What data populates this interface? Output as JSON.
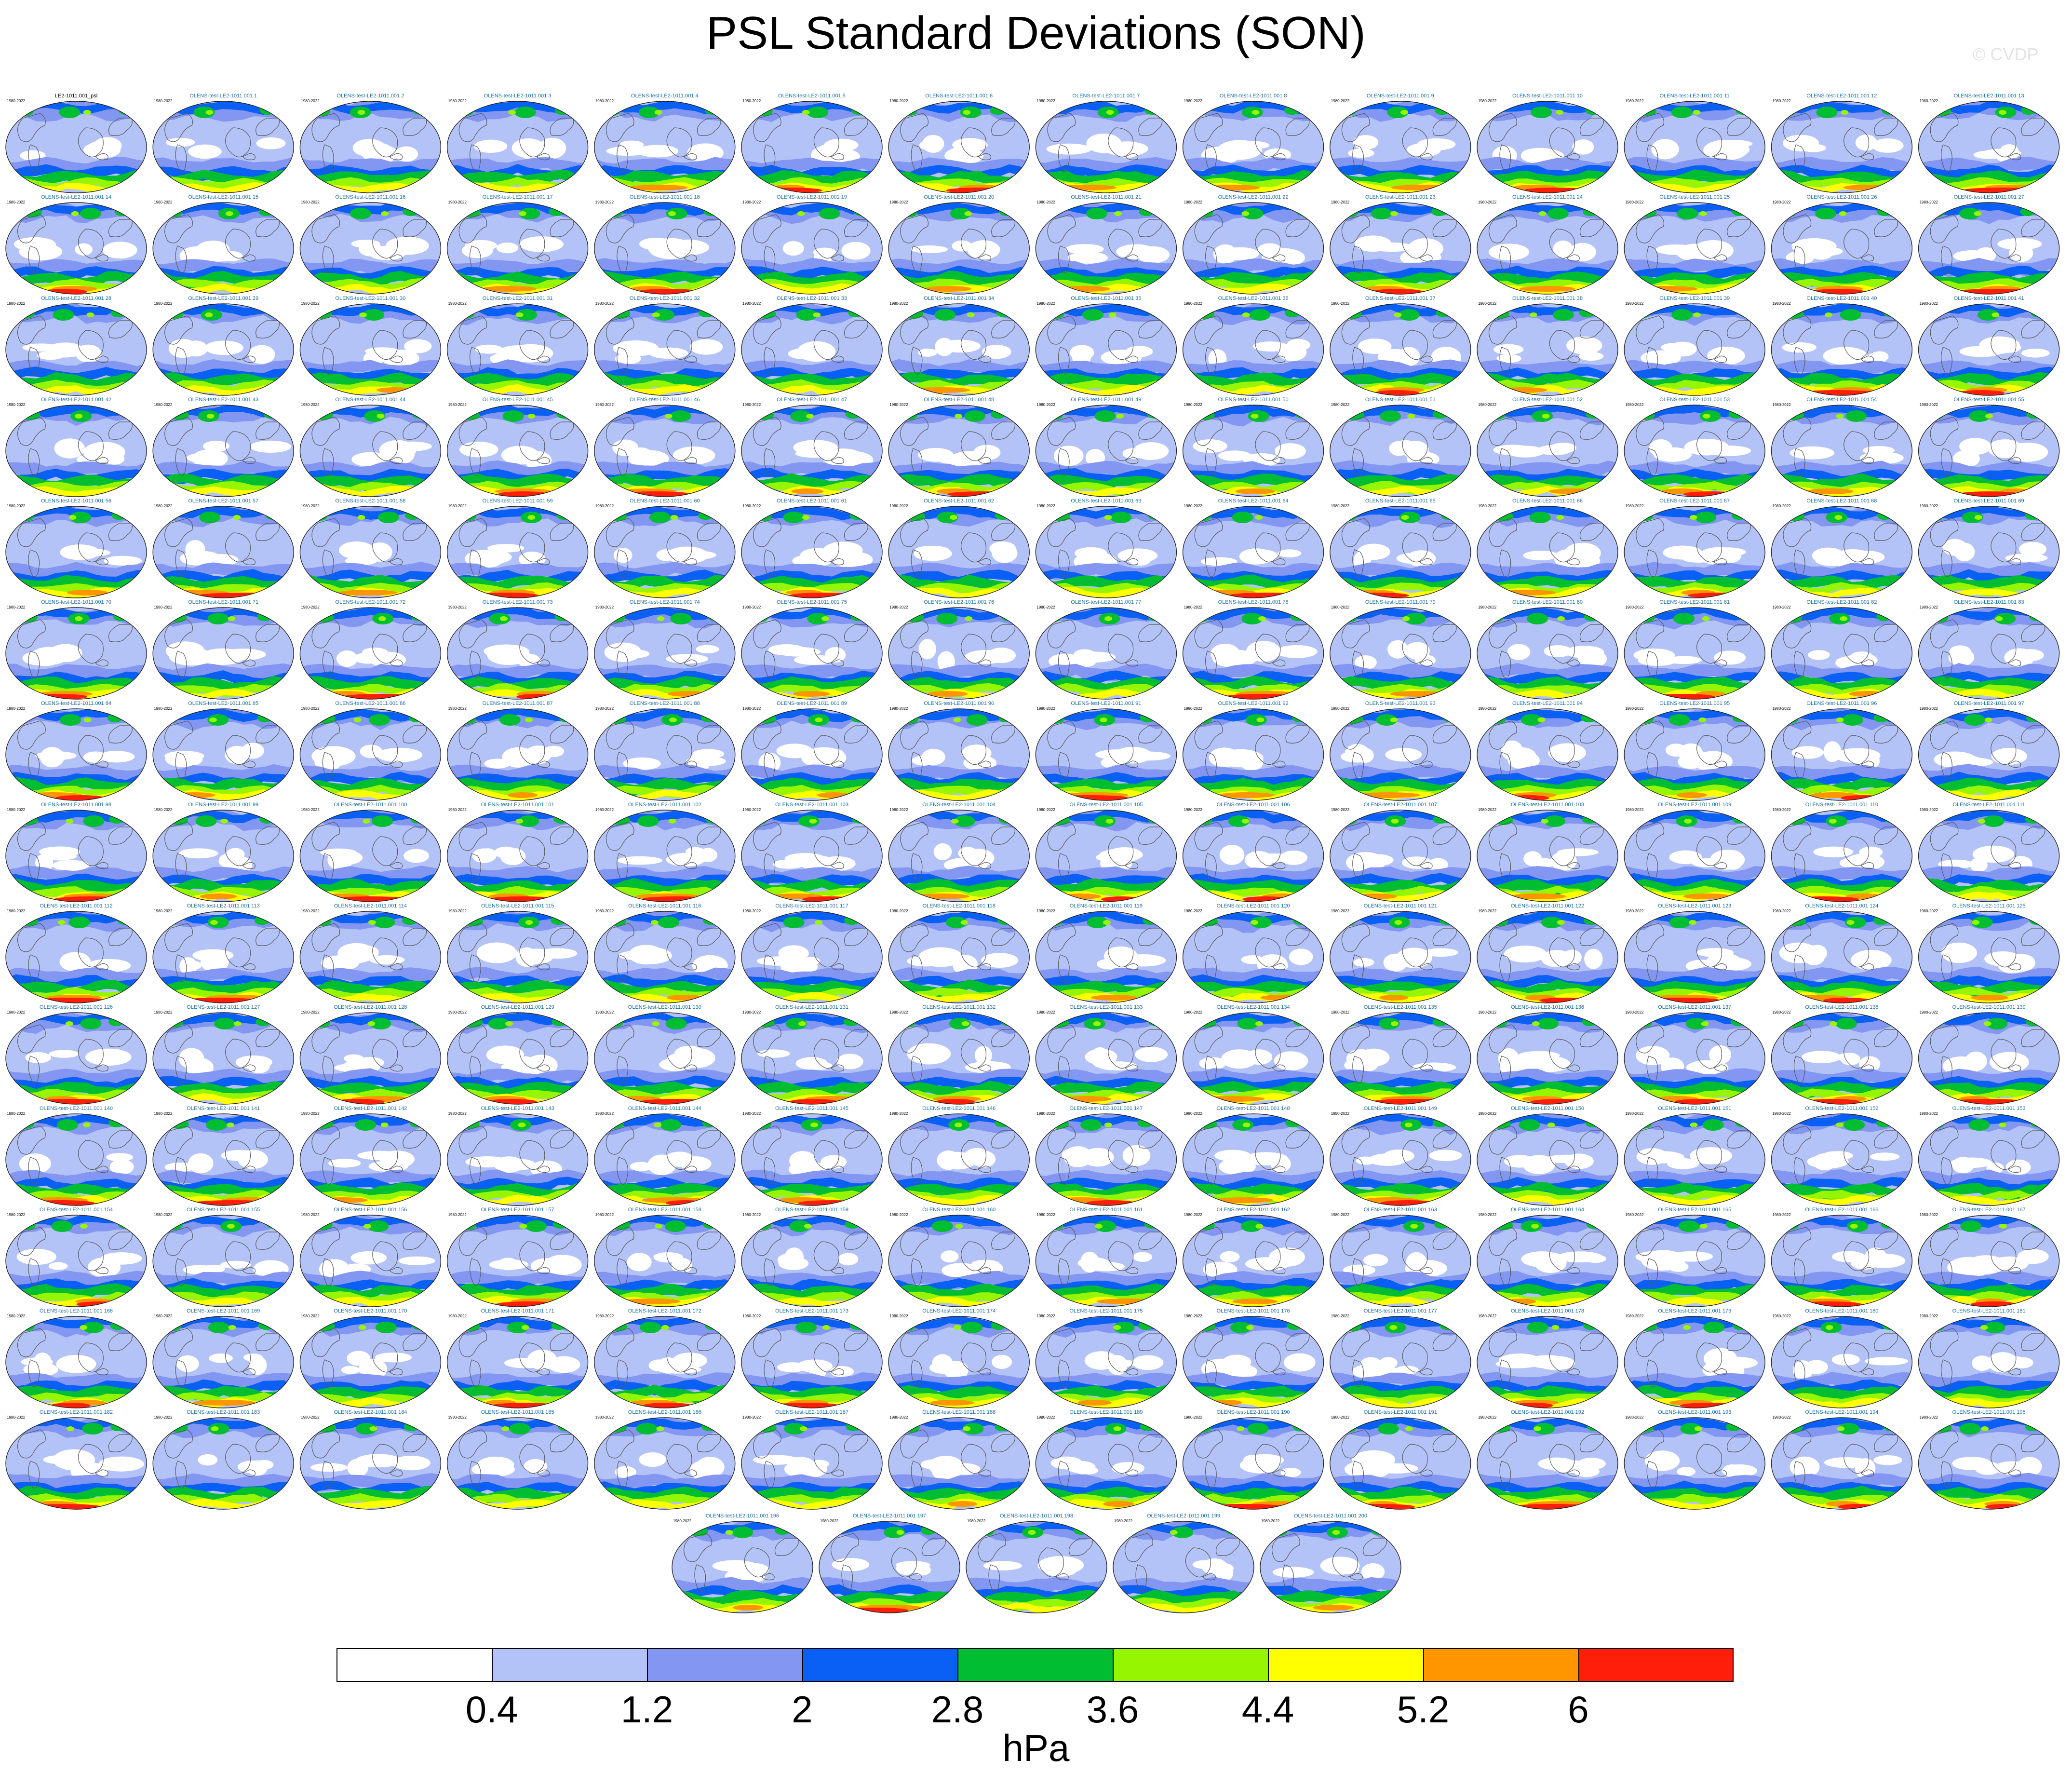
{
  "title": "PSL Standard Deviations (SON)",
  "watermark": "© CVDP",
  "year_range": "1980-2022",
  "observed_panel_label": "LE2-1011.001_psl",
  "ensemble_label_prefix": "OLENS-test-LE2-1011.001",
  "member_count": 200,
  "colorbar": {
    "colors": [
      "#ffffff",
      "#b4c3f7",
      "#8296f2",
      "#0a5ff5",
      "#00bd32",
      "#96f500",
      "#ffff00",
      "#ff9600",
      "#ff1e0a"
    ],
    "tick_labels": [
      "0.4",
      "1.2",
      "2",
      "2.8",
      "3.6",
      "4.4",
      "5.2",
      "6"
    ],
    "unit": "hPa"
  }
}
